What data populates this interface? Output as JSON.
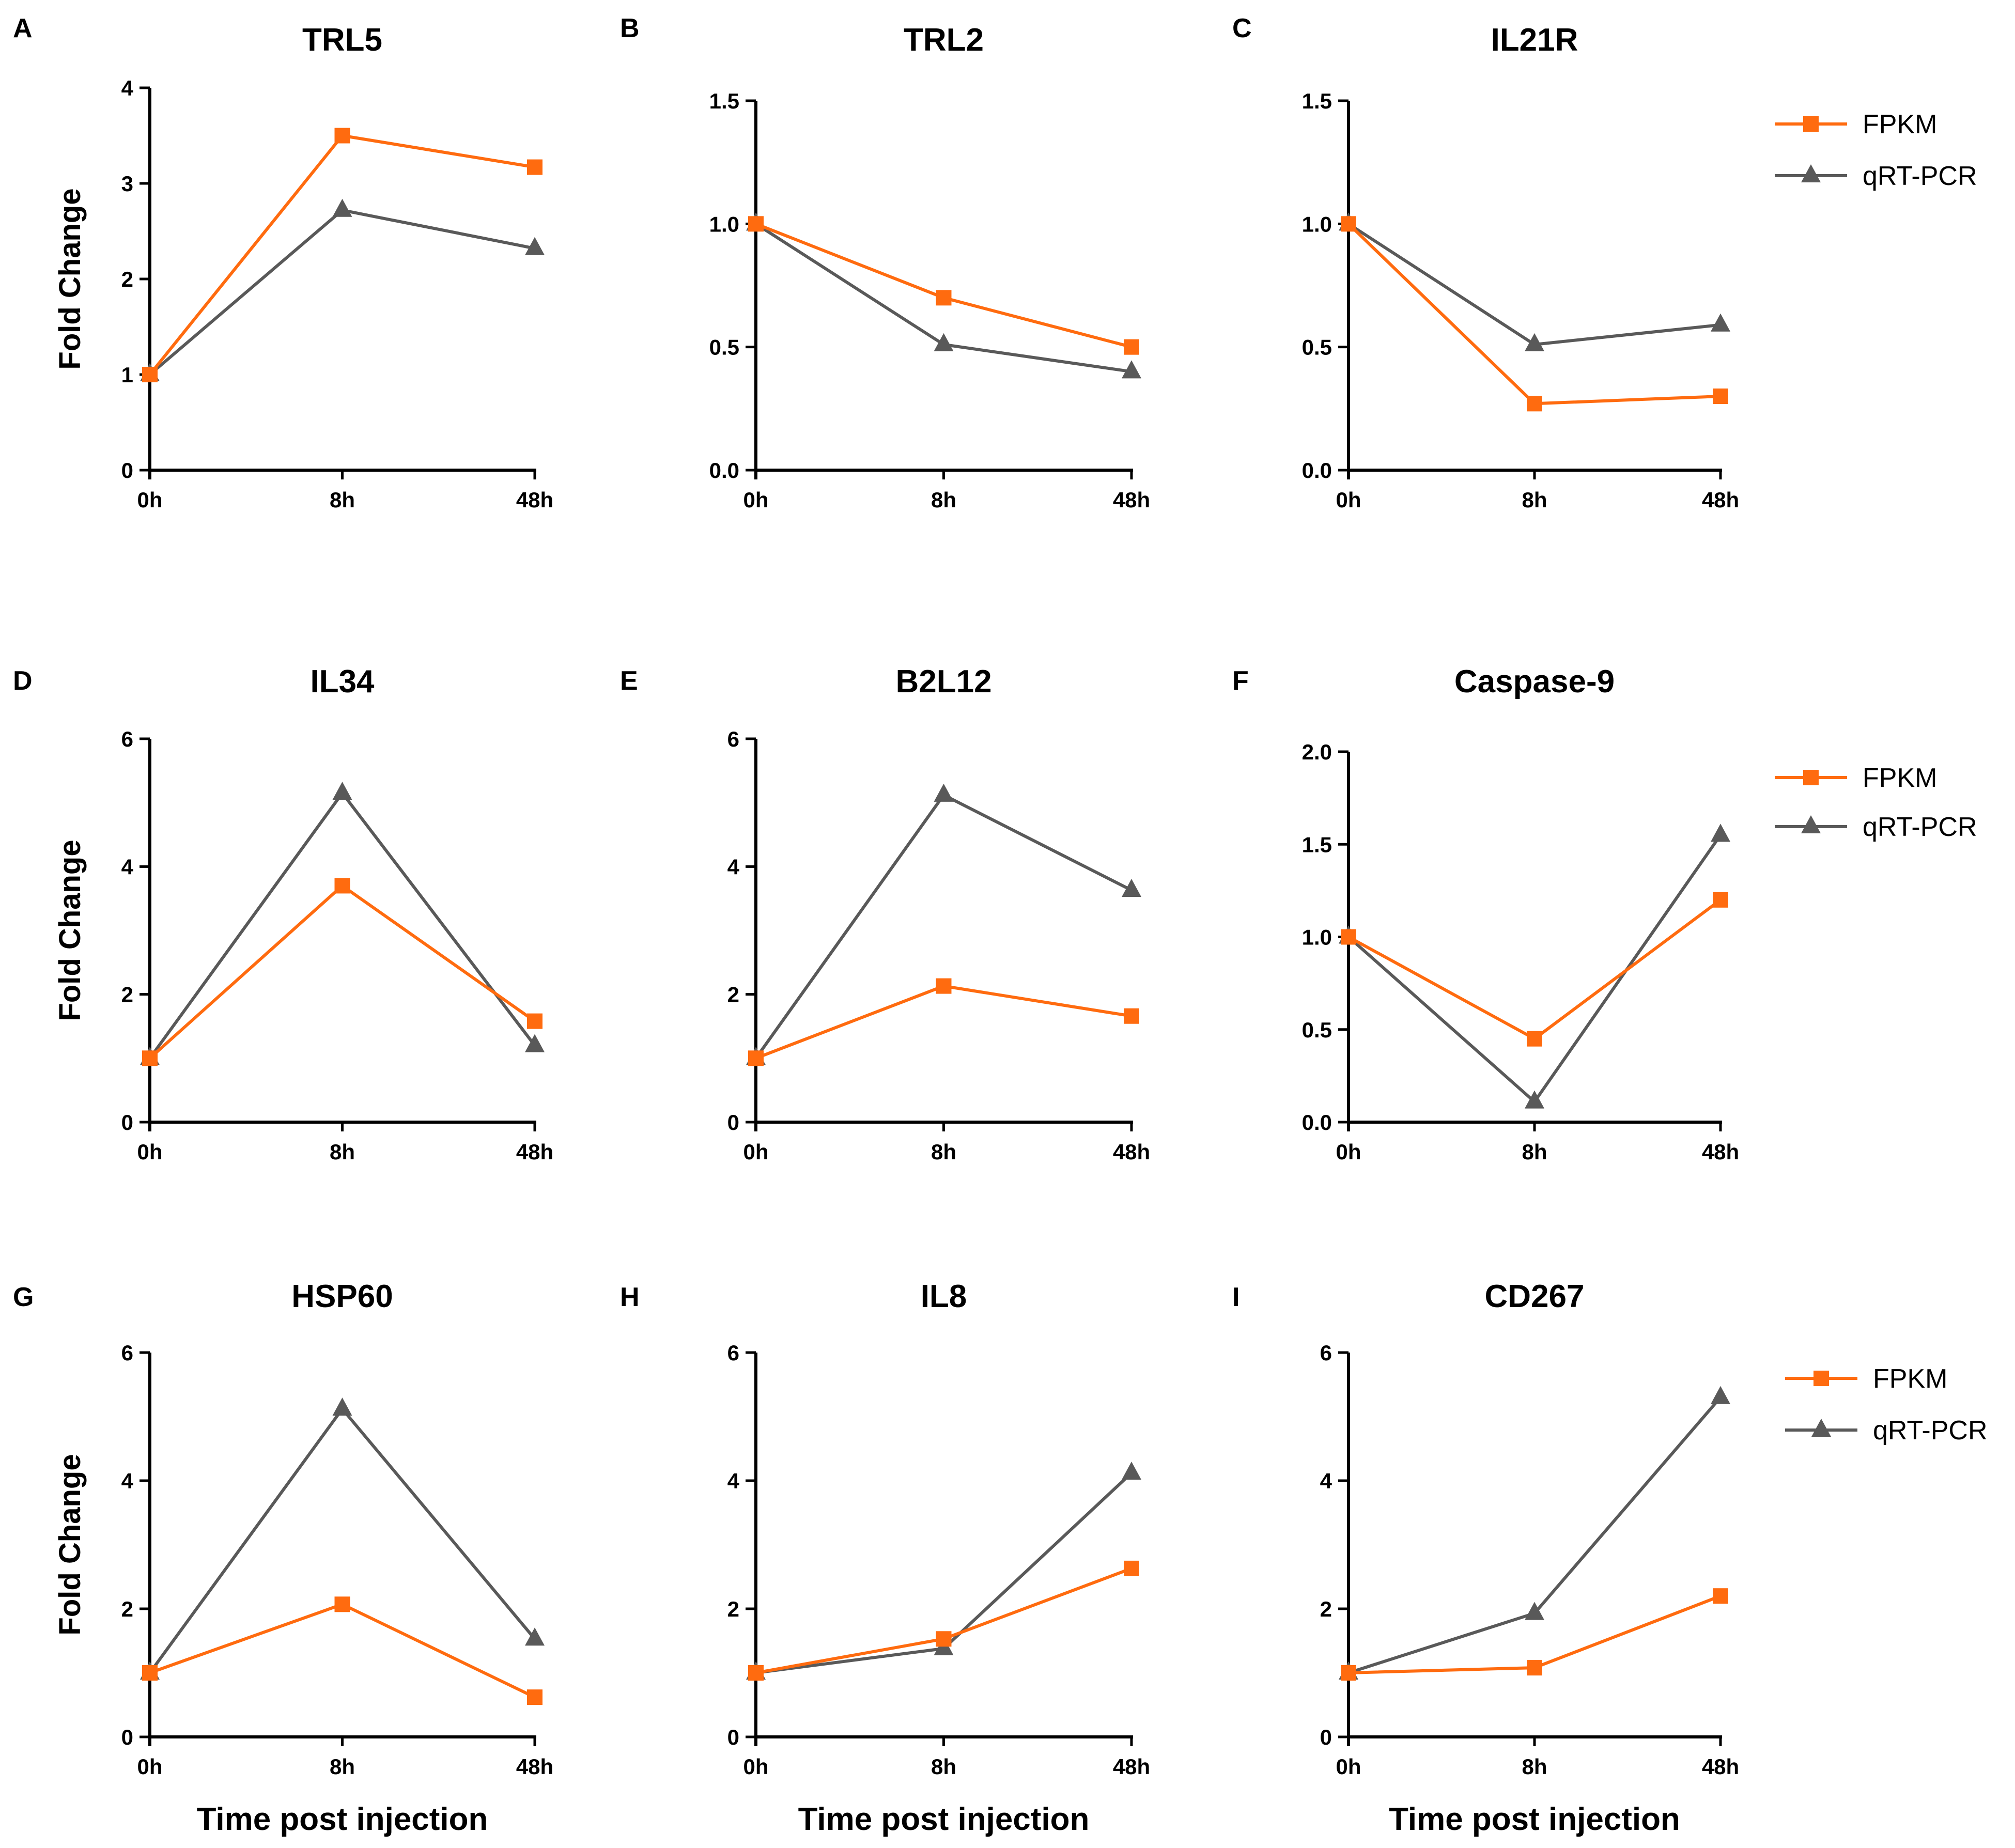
{
  "colors": {
    "fpkm": "#FF6B0F",
    "qrtpcr": "#595959",
    "axis": "#000000"
  },
  "legend": {
    "fpkm_label": "FPKM",
    "qrtpcr_label": "qRT-PCR"
  },
  "chart_data": [
    {
      "panel": "A",
      "type": "line",
      "title": "TRL5",
      "xlabel": "",
      "ylabel": "Fold Change",
      "categories": [
        "0h",
        "8h",
        "48h"
      ],
      "ylim": [
        0,
        4
      ],
      "yticks": [
        "0",
        "1",
        "2",
        "3",
        "4"
      ],
      "series": [
        {
          "name": "FPKM",
          "marker": "square",
          "values": [
            1.0,
            3.5,
            3.17
          ]
        },
        {
          "name": "qRT-PCR",
          "marker": "triangle",
          "values": [
            1.0,
            2.72,
            2.32
          ]
        }
      ]
    },
    {
      "panel": "B",
      "type": "line",
      "title": "TRL2",
      "xlabel": "",
      "ylabel": "",
      "categories": [
        "0h",
        "8h",
        "48h"
      ],
      "ylim": [
        0,
        1.5
      ],
      "yticks": [
        "0.0",
        "0.5",
        "1.0",
        "1.5"
      ],
      "series": [
        {
          "name": "FPKM",
          "marker": "square",
          "values": [
            1.0,
            0.7,
            0.5
          ]
        },
        {
          "name": "qRT-PCR",
          "marker": "triangle",
          "values": [
            1.0,
            0.51,
            0.4
          ]
        }
      ]
    },
    {
      "panel": "C",
      "type": "line",
      "title": "IL21R",
      "xlabel": "",
      "ylabel": "",
      "categories": [
        "0h",
        "8h",
        "48h"
      ],
      "ylim": [
        0,
        1.5
      ],
      "yticks": [
        "0.0",
        "0.5",
        "1.0",
        "1.5"
      ],
      "series": [
        {
          "name": "FPKM",
          "marker": "square",
          "values": [
            1.0,
            0.27,
            0.3
          ]
        },
        {
          "name": "qRT-PCR",
          "marker": "triangle",
          "values": [
            1.0,
            0.51,
            0.59
          ]
        }
      ]
    },
    {
      "panel": "D",
      "type": "line",
      "title": "IL34",
      "xlabel": "",
      "ylabel": "Fold Change",
      "categories": [
        "0h",
        "8h",
        "48h"
      ],
      "ylim": [
        0,
        6
      ],
      "yticks": [
        "0",
        "2",
        "4",
        "6"
      ],
      "series": [
        {
          "name": "FPKM",
          "marker": "square",
          "values": [
            1.0,
            3.7,
            1.58
          ]
        },
        {
          "name": "qRT-PCR",
          "marker": "triangle",
          "values": [
            1.0,
            5.15,
            1.2
          ]
        }
      ]
    },
    {
      "panel": "E",
      "type": "line",
      "title": "B2L12",
      "xlabel": "",
      "ylabel": "",
      "categories": [
        "0h",
        "8h",
        "48h"
      ],
      "ylim": [
        0,
        6
      ],
      "yticks": [
        "0",
        "2",
        "4",
        "6"
      ],
      "series": [
        {
          "name": "FPKM",
          "marker": "square",
          "values": [
            1.0,
            2.13,
            1.66
          ]
        },
        {
          "name": "qRT-PCR",
          "marker": "triangle",
          "values": [
            1.0,
            5.12,
            3.63
          ]
        }
      ]
    },
    {
      "panel": "F",
      "type": "line",
      "title": "Caspase-9",
      "xlabel": "",
      "ylabel": "",
      "categories": [
        "0h",
        "8h",
        "48h"
      ],
      "ylim": [
        0,
        2.0
      ],
      "yticks": [
        "0.0",
        "0.5",
        "1.0",
        "1.5",
        "2.0"
      ],
      "series": [
        {
          "name": "FPKM",
          "marker": "square",
          "values": [
            1.0,
            0.45,
            1.2
          ]
        },
        {
          "name": "qRT-PCR",
          "marker": "triangle",
          "values": [
            1.0,
            0.11,
            1.55
          ]
        }
      ]
    },
    {
      "panel": "G",
      "type": "line",
      "title": "HSP60",
      "xlabel": "Time post injection",
      "ylabel": "Fold Change",
      "categories": [
        "0h",
        "8h",
        "48h"
      ],
      "ylim": [
        0,
        6
      ],
      "yticks": [
        "0",
        "2",
        "4",
        "6"
      ],
      "series": [
        {
          "name": "FPKM",
          "marker": "square",
          "values": [
            1.0,
            2.07,
            0.62
          ]
        },
        {
          "name": "qRT-PCR",
          "marker": "triangle",
          "values": [
            1.0,
            5.12,
            1.53
          ]
        }
      ]
    },
    {
      "panel": "H",
      "type": "line",
      "title": "IL8",
      "xlabel": "Time post injection",
      "ylabel": "",
      "categories": [
        "0h",
        "8h",
        "48h"
      ],
      "ylim": [
        0,
        6
      ],
      "yticks": [
        "0",
        "2",
        "4",
        "6"
      ],
      "series": [
        {
          "name": "FPKM",
          "marker": "square",
          "values": [
            1.0,
            1.53,
            2.63
          ]
        },
        {
          "name": "qRT-PCR",
          "marker": "triangle",
          "values": [
            1.0,
            1.38,
            4.12
          ]
        }
      ]
    },
    {
      "panel": "I",
      "type": "line",
      "title": "CD267",
      "xlabel": "Time post injection",
      "ylabel": "",
      "categories": [
        "0h",
        "8h",
        "48h"
      ],
      "ylim": [
        0,
        6
      ],
      "yticks": [
        "0",
        "2",
        "4",
        "6"
      ],
      "series": [
        {
          "name": "FPKM",
          "marker": "square",
          "values": [
            1.0,
            1.08,
            2.2
          ]
        },
        {
          "name": "qRT-PCR",
          "marker": "triangle",
          "values": [
            1.0,
            1.93,
            5.3
          ]
        }
      ]
    }
  ]
}
